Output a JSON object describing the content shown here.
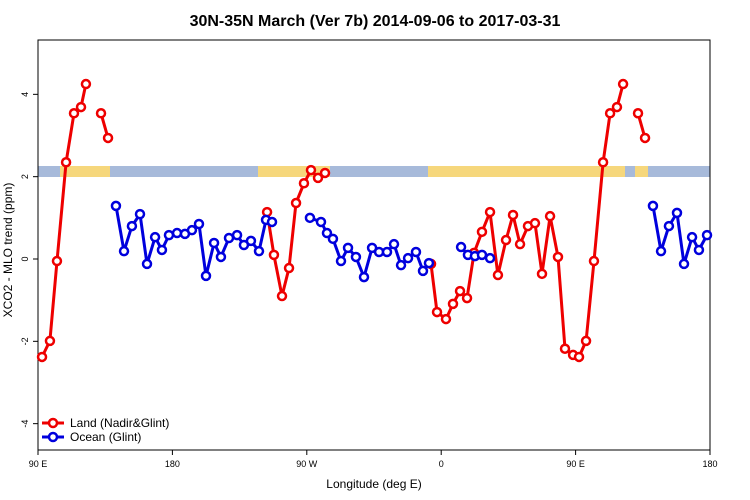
{
  "chart_data": {
    "type": "line",
    "title": "30N-35N March (Ver 7b)   2014-09-06 to 2017-03-31",
    "x_label": "Longitude (deg E)",
    "y_label": "XCO2 - MLO trend (ppm)",
    "xlim": [
      90,
      540
    ],
    "xticks": [
      {
        "value": 90,
        "label": "90 E"
      },
      180,
      {
        "value": 270,
        "label": "90 W"
      },
      {
        "value": 360,
        "label": "0"
      },
      {
        "value": 450,
        "label": "90 E"
      },
      {
        "value": 540,
        "label": "180"
      }
    ],
    "ylim": [
      -4.64,
      5.32
    ],
    "yticks": [
      -4,
      -2,
      0,
      2,
      4
    ],
    "series": [
      {
        "name": "Land (Nadir&Glint)",
        "color": "#ee0000",
        "x": [
          92.7,
          98.0,
          102.7,
          108.8,
          114.1,
          118.8,
          122.1,
          null,
          132.2,
          136.9,
          null,
          243.4,
          248.0,
          253.4,
          258.1,
          262.8,
          268.1,
          272.8,
          277.5,
          282.2,
          null,
          353.2,
          357.2,
          363.2,
          367.9,
          372.6,
          377.3,
          382.0,
          387.3,
          392.7,
          398.0,
          403.4,
          408.1,
          412.8,
          418.1,
          422.8,
          427.5,
          432.9,
          438.2,
          442.9,
          448.3,
          452.3,
          457.0,
          462.3,
          468.4,
          473.1,
          477.7,
          481.8,
          null,
          491.8,
          496.5
        ],
        "values": [
          -2.38,
          -1.99,
          -0.05,
          2.35,
          3.54,
          3.69,
          4.25,
          null,
          3.54,
          2.94,
          null,
          1.14,
          0.1,
          -0.9,
          -0.22,
          1.36,
          1.84,
          2.16,
          1.97,
          2.09,
          null,
          -0.12,
          -1.29,
          -1.46,
          -1.09,
          -0.78,
          -0.95,
          0.15,
          0.66,
          1.14,
          -0.39,
          0.46,
          1.07,
          0.36,
          0.8,
          0.87,
          -0.36,
          1.04,
          0.05,
          -2.18,
          -2.33,
          -2.38,
          -1.99,
          -0.05,
          2.35,
          3.54,
          3.69,
          4.25,
          null,
          3.54,
          2.94
        ]
      },
      {
        "name": "Ocean (Glint)",
        "color": "#0000dd",
        "x": [
          142.2,
          147.6,
          152.9,
          158.3,
          163.0,
          168.4,
          173.0,
          177.7,
          183.1,
          188.4,
          193.1,
          197.8,
          202.5,
          207.9,
          212.5,
          217.9,
          223.3,
          227.9,
          232.6,
          238.0,
          242.7,
          246.7,
          null,
          272.1,
          279.5,
          283.5,
          287.5,
          292.9,
          297.6,
          302.9,
          308.3,
          313.7,
          318.4,
          323.7,
          328.4,
          333.1,
          337.8,
          343.1,
          347.8,
          351.8,
          null,
          373.3,
          377.9,
          382.6,
          387.3,
          392.7,
          null,
          501.8,
          507.2,
          512.5,
          517.9,
          522.6,
          528.0,
          532.6,
          538.0
        ],
        "values": [
          1.29,
          0.19,
          0.8,
          1.09,
          -0.12,
          0.53,
          0.22,
          0.58,
          0.63,
          0.61,
          0.7,
          0.85,
          -0.41,
          0.39,
          0.05,
          0.51,
          0.58,
          0.34,
          0.44,
          0.19,
          0.95,
          0.9,
          null,
          1.0,
          0.9,
          0.63,
          0.49,
          -0.05,
          0.27,
          0.05,
          -0.44,
          0.27,
          0.17,
          0.17,
          0.36,
          -0.15,
          0.02,
          0.17,
          -0.29,
          -0.1,
          null,
          0.29,
          0.1,
          0.07,
          0.1,
          0.02,
          null,
          1.29,
          0.19,
          0.8,
          1.12,
          -0.12,
          0.53,
          0.22,
          0.58
        ]
      }
    ]
  }
}
